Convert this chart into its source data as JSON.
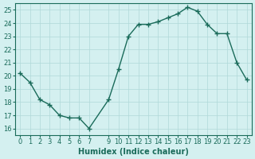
{
  "x": [
    0,
    1,
    2,
    3,
    4,
    5,
    6,
    7,
    9,
    10,
    11,
    12,
    13,
    14,
    15,
    16,
    17,
    18,
    19,
    20,
    21,
    22,
    23
  ],
  "y": [
    20.2,
    19.5,
    18.2,
    17.8,
    17.0,
    16.8,
    16.8,
    16.0,
    18.2,
    20.5,
    23.0,
    23.9,
    23.9,
    24.1,
    24.4,
    24.7,
    25.2,
    24.9,
    23.9,
    23.2,
    23.2,
    21.0,
    19.7
  ],
  "xlabel": "Humidex (Indice chaleur)",
  "ylabel": "",
  "title": "",
  "line_color": "#1a6b5a",
  "marker_color": "#1a6b5a",
  "bg_color": "#d4f0f0",
  "grid_color": "#b0d8d8",
  "ylim": [
    15.5,
    25.5
  ],
  "xlim": [
    -0.5,
    23.5
  ],
  "yticks": [
    16,
    17,
    18,
    19,
    20,
    21,
    22,
    23,
    24,
    25
  ],
  "xticks": [
    0,
    1,
    2,
    3,
    4,
    5,
    6,
    7,
    9,
    10,
    11,
    12,
    13,
    14,
    15,
    16,
    17,
    18,
    19,
    20,
    21,
    22,
    23
  ]
}
